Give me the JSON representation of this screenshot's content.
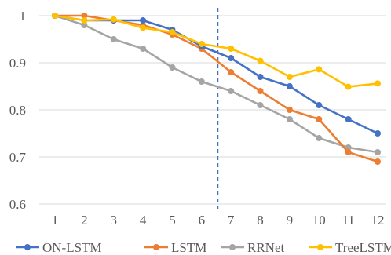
{
  "chart_data": {
    "type": "line",
    "title": "",
    "xlabel": "",
    "ylabel": "",
    "categories": [
      "1",
      "2",
      "3",
      "4",
      "5",
      "6",
      "7",
      "8",
      "9",
      "10",
      "11",
      "12"
    ],
    "x": [
      1,
      2,
      3,
      4,
      5,
      6,
      7,
      8,
      9,
      10,
      11,
      12
    ],
    "ylim": [
      0.6,
      1.0
    ],
    "yticks": [
      "0.6",
      "0.7",
      "0.8",
      "0.9",
      "1"
    ],
    "ytick_values": [
      0.6,
      0.7,
      0.8,
      0.9,
      1.0
    ],
    "grid": "horizontal",
    "legend_position": "bottom",
    "reference_line": {
      "x": 6.5,
      "style": "dashed",
      "color": "#4472c4"
    },
    "series": [
      {
        "name": "ON-LSTM",
        "color": "#4472c4",
        "values": [
          1.0,
          0.99,
          0.99,
          0.99,
          0.97,
          0.935,
          0.91,
          0.87,
          0.85,
          0.81,
          0.78,
          0.75
        ]
      },
      {
        "name": "LSTM",
        "color": "#ed7d31",
        "values": [
          1.0,
          1.0,
          0.99,
          0.98,
          0.96,
          0.93,
          0.88,
          0.84,
          0.8,
          0.78,
          0.71,
          0.69
        ]
      },
      {
        "name": "RRNet",
        "color": "#a5a5a5",
        "values": [
          1.0,
          0.98,
          0.95,
          0.93,
          0.89,
          0.86,
          0.84,
          0.81,
          0.78,
          0.74,
          0.72,
          0.71
        ]
      },
      {
        "name": "TreeLSTM",
        "color": "#ffc000",
        "values": [
          1.0,
          0.99,
          0.992,
          0.974,
          0.965,
          0.94,
          0.93,
          0.904,
          0.87,
          0.886,
          0.849,
          0.856
        ]
      }
    ]
  }
}
